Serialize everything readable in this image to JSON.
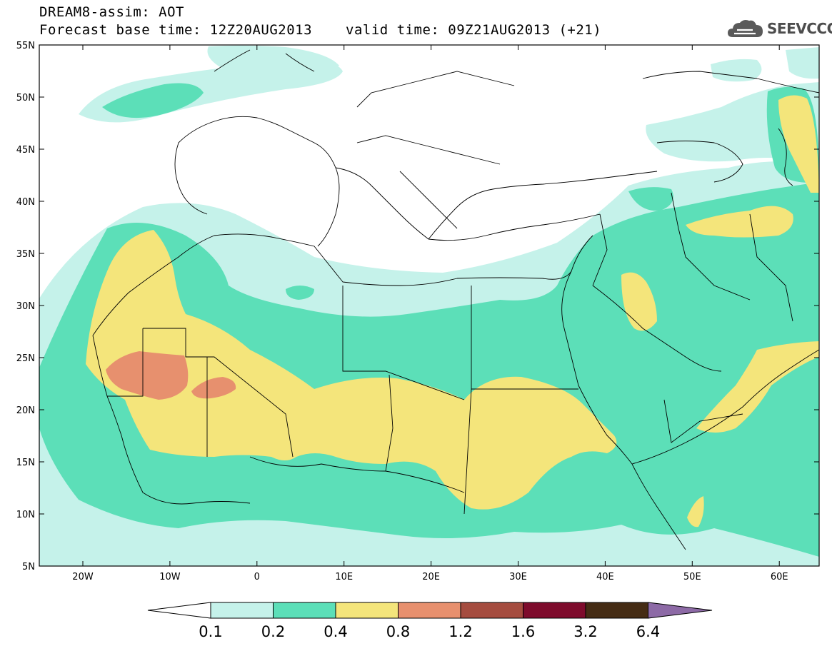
{
  "header": {
    "line1": "DREAM8-assim: AOT",
    "line2": "Forecast base time: 12Z20AUG2013",
    "valid": "valid time: 09Z21AUG2013 (+21)",
    "logo": "SEEVCCC"
  },
  "map": {
    "lat_ticks": [
      "55N",
      "50N",
      "45N",
      "40N",
      "35N",
      "30N",
      "25N",
      "20N",
      "15N",
      "10N",
      "5N"
    ],
    "lon_ticks": [
      "20W",
      "10W",
      "0",
      "10E",
      "20E",
      "30E",
      "40E",
      "50E",
      "60E"
    ],
    "field_colors": {
      "c01": "#c5f2ea",
      "c02": "#5cdfb8",
      "c04": "#f4e57b",
      "c08": "#e7906e",
      "c12": "#a54c3f",
      "c16": "#7e0b2c",
      "c32": "#452c14",
      "c64": "#8d6aa6"
    }
  },
  "colorbar": {
    "labels": [
      "0.1",
      "0.2",
      "0.4",
      "0.8",
      "1.2",
      "1.6",
      "3.2",
      "6.4"
    ],
    "colors": [
      "#c5f2ea",
      "#5cdfb8",
      "#f4e57b",
      "#e7906e",
      "#a54c3f",
      "#7e0b2c",
      "#452c14"
    ],
    "over_color": "#8d6aa6",
    "under_color": "#ffffff"
  }
}
